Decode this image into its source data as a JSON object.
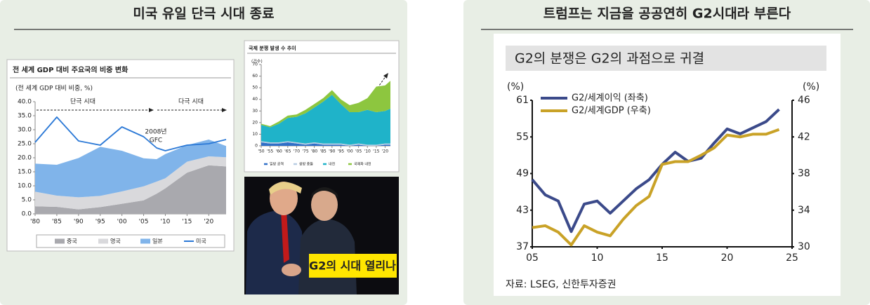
{
  "panels": {
    "left_title": "미국 유일 단극 시대 종료",
    "right_title": "트럼프는 지금을 공공연히 G2시대라 부른다"
  },
  "photo": {
    "caption": "G2의 시대 열리나"
  },
  "chart_data": [
    {
      "type": "area",
      "title": "전 세계 GDP 대비 주요국의 비중 변화",
      "y_label": "(전 세계 GDP 대비 비중, %)",
      "annotations": [
        "단극 시대",
        "다극 시대",
        "2008년",
        "GFC"
      ],
      "x": [
        1980,
        1985,
        1990,
        1995,
        2000,
        2005,
        2008,
        2010,
        2015,
        2020,
        2024
      ],
      "series": [
        {
          "name": "중국",
          "color": "#a9a9ae",
          "values": [
            2.7,
            2.5,
            1.6,
            2.4,
            3.6,
            4.8,
            7.2,
            9.1,
            14.7,
            17.3,
            16.9
          ]
        },
        {
          "name": "영국",
          "color": "#d9d9dc",
          "values": [
            5.2,
            4.0,
            4.3,
            4.0,
            4.4,
            5.0,
            4.3,
            3.6,
            3.9,
            3.2,
            3.3
          ]
        },
        {
          "name": "일본",
          "color": "#80b4ea",
          "values": [
            10,
            11,
            14,
            17.5,
            14.5,
            10,
            8,
            8.6,
            5.9,
            6,
            4
          ]
        },
        {
          "name": "미국",
          "color": "#2a78d6",
          "type": "line",
          "values": [
            25.5,
            34.5,
            26,
            24.5,
            31,
            27.5,
            23.5,
            22.5,
            24.5,
            25,
            26.5
          ]
        }
      ],
      "xlim": [
        1980,
        2024
      ],
      "ylim": [
        0,
        40
      ],
      "xticks": [
        {
          "value": 1980,
          "label": "'80"
        },
        {
          "value": 1985,
          "label": "'85"
        },
        {
          "value": 1990,
          "label": "'90"
        },
        {
          "value": 1995,
          "label": "'95"
        },
        {
          "value": 2000,
          "label": "'00"
        },
        {
          "value": 2005,
          "label": "'05"
        },
        {
          "value": 2010,
          "label": "'10"
        },
        {
          "value": 2015,
          "label": "'15"
        },
        {
          "value": 2020,
          "label": "'20"
        }
      ],
      "yticks": [
        {
          "value": 0,
          "label": "0.0"
        },
        {
          "value": 5,
          "label": "5.0"
        },
        {
          "value": 10,
          "label": "10.0"
        },
        {
          "value": 15,
          "label": "15.0"
        },
        {
          "value": 20,
          "label": "20.0"
        },
        {
          "value": 25,
          "label": "25.0"
        },
        {
          "value": 30,
          "label": "30.0"
        },
        {
          "value": 35,
          "label": "35.0"
        },
        {
          "value": 40,
          "label": "40.0"
        }
      ]
    },
    {
      "type": "area",
      "title": "국제 분쟁 발생 수 추이",
      "y_label": "(건수)",
      "x": [
        1950,
        1955,
        1960,
        1965,
        1970,
        1975,
        1980,
        1985,
        1990,
        1995,
        2000,
        2005,
        2010,
        2015,
        2020,
        2023
      ],
      "series": [
        {
          "name": "일방 공격",
          "color": "#2f6fc8",
          "values": [
            3,
            2,
            2,
            3,
            2,
            1,
            2,
            1,
            1,
            1,
            0,
            1,
            0,
            0,
            1,
            1
          ]
        },
        {
          "name": "쌍방 충돌",
          "color": "#b8cde3",
          "values": [
            1,
            1,
            1,
            1,
            1,
            1,
            1,
            1,
            1,
            1,
            1,
            1,
            1,
            1,
            1,
            1
          ]
        },
        {
          "name": "내전",
          "color": "#1fb3c9",
          "values": [
            14,
            13,
            16,
            20,
            22,
            26,
            30,
            36,
            42,
            34,
            28,
            27,
            30,
            28,
            28,
            30
          ]
        },
        {
          "name": "국제화 내전",
          "color": "#8dc63f",
          "values": [
            1,
            1,
            2,
            2,
            2,
            3,
            3,
            3,
            4,
            4,
            6,
            8,
            10,
            22,
            22,
            24
          ]
        }
      ],
      "xlim": [
        1950,
        2023
      ],
      "ylim": [
        0,
        70
      ],
      "xticks": [
        {
          "value": 1950,
          "label": "'50"
        },
        {
          "value": 1955,
          "label": "'55"
        },
        {
          "value": 1960,
          "label": "'60"
        },
        {
          "value": 1965,
          "label": "'65"
        },
        {
          "value": 1970,
          "label": "'70"
        },
        {
          "value": 1975,
          "label": "'75"
        },
        {
          "value": 1980,
          "label": "'80"
        },
        {
          "value": 1985,
          "label": "'85"
        },
        {
          "value": 1990,
          "label": "'90"
        },
        {
          "value": 1995,
          "label": "'95"
        },
        {
          "value": 2000,
          "label": "'00"
        },
        {
          "value": 2005,
          "label": "'05"
        },
        {
          "value": 2010,
          "label": "'10"
        },
        {
          "value": 2015,
          "label": "'15"
        },
        {
          "value": 2020,
          "label": "'20"
        }
      ],
      "yticks": [
        0,
        10,
        20,
        30,
        40,
        50,
        60,
        70
      ]
    },
    {
      "type": "line",
      "title": "G2의 분쟁은 G2의 과점으로 귀결",
      "y_label": "(%)",
      "y2_label": "(%)",
      "source": "자료: LSEG, 신한투자증권",
      "x": [
        2005,
        2006,
        2007,
        2008,
        2009,
        2010,
        2011,
        2012,
        2013,
        2014,
        2015,
        2016,
        2017,
        2018,
        2019,
        2020,
        2021,
        2022,
        2023,
        2024
      ],
      "series": [
        {
          "name": "G2/세계이익 (좌축)",
          "color": "#3b4a8a",
          "values": [
            48,
            45.5,
            44.5,
            39.5,
            44,
            44.5,
            42.5,
            44.5,
            46.5,
            48,
            50.5,
            52.5,
            51,
            51.5,
            54,
            56.3,
            55.5,
            56.5,
            57.5,
            59.5
          ]
        },
        {
          "name": "G2/세계GDP (우축)",
          "color": "#c9a227",
          "axis": "y2",
          "values": [
            32.1,
            32.3,
            31.6,
            30.2,
            32.3,
            31.6,
            31.2,
            33,
            34.5,
            35.5,
            39,
            39.3,
            39.3,
            40,
            40.8,
            42.2,
            42,
            42.3,
            42.3,
            42.8
          ]
        }
      ],
      "xlim": [
        2005,
        2025
      ],
      "ylim": [
        37,
        61
      ],
      "y2lim": [
        30,
        46
      ],
      "xticks": [
        {
          "value": 2005,
          "label": "05"
        },
        {
          "value": 2010,
          "label": "10"
        },
        {
          "value": 2015,
          "label": "15"
        },
        {
          "value": 2020,
          "label": "20"
        },
        {
          "value": 2025,
          "label": "25"
        }
      ],
      "yticks": [
        37,
        43,
        49,
        55,
        61
      ],
      "y2ticks": [
        30,
        34,
        38,
        42,
        46
      ]
    }
  ]
}
